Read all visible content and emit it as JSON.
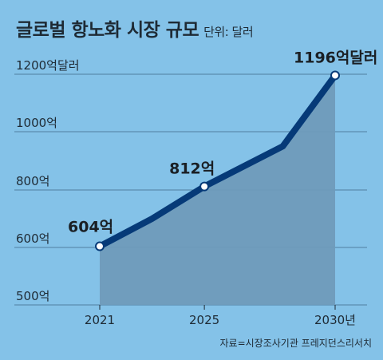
{
  "title": "글로벌 항노화 시장 규모",
  "unit_label": "단위: 달러",
  "source": "자료=시장조사기관 프레지던스리서치",
  "colors": {
    "background": "#84c2e8",
    "line": "#063a78",
    "area": "#6f9bbb",
    "grid": "#4f7f9f",
    "text": "#1e2a34"
  },
  "chart_data": {
    "type": "line",
    "title": "글로벌 항노화 시장 규모",
    "unit": "단위: 달러",
    "x": [
      2021,
      2025,
      2030
    ],
    "x_tick_labels": [
      "2021",
      "2025",
      "2030년"
    ],
    "ylim": [
      500,
      1200
    ],
    "y_ticks": [
      500,
      600,
      800,
      1000,
      1200
    ],
    "y_tick_labels": [
      "500억",
      "600억",
      "800억",
      "1000억",
      "1200억달러"
    ],
    "series": [
      {
        "values": [
          {
            "x": 2021,
            "y": 604
          },
          {
            "x": 2023,
            "y": 700
          },
          {
            "x": 2025,
            "y": 812
          },
          {
            "x": 2028,
            "y": 950
          },
          {
            "x": 2030,
            "y": 1196
          }
        ]
      }
    ],
    "labeled_points": [
      {
        "x": 2021,
        "y": 604,
        "label": "604억"
      },
      {
        "x": 2025,
        "y": 812,
        "label": "812억"
      },
      {
        "x": 2030,
        "y": 1196,
        "label": "1196억달러"
      }
    ],
    "grid": true,
    "area_fill": true
  }
}
